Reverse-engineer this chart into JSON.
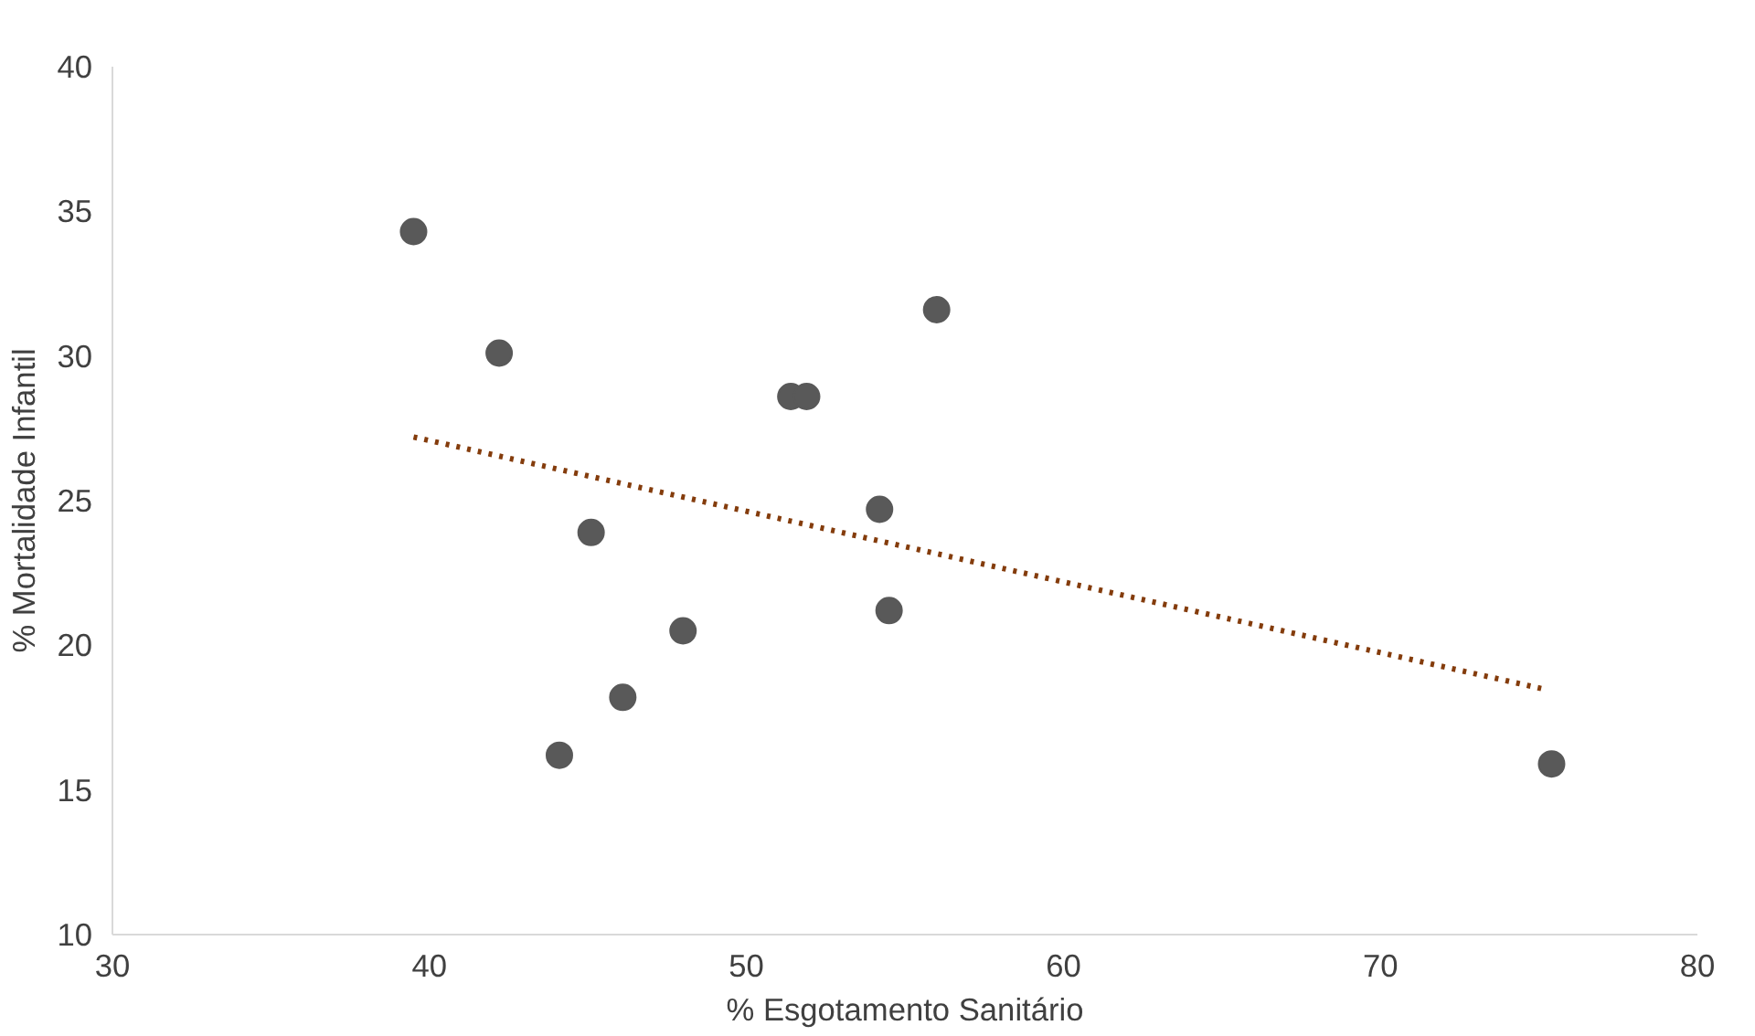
{
  "chart_data": {
    "type": "scatter",
    "xlabel": "% Esgotamento Sanitário",
    "ylabel": "% Mortalidade Infantil",
    "xlim": [
      30,
      80
    ],
    "ylim": [
      10,
      40
    ],
    "xticks": [
      30,
      40,
      50,
      60,
      70,
      80
    ],
    "yticks": [
      10,
      15,
      20,
      25,
      30,
      35,
      40
    ],
    "grid": false,
    "marker": "circle",
    "series": [
      {
        "color": "#595959",
        "x": [
          39.5,
          42.2,
          45.1,
          48.0,
          46.1,
          44.1,
          51.4,
          51.9,
          54.2,
          54.5,
          56.0,
          75.4
        ],
        "values": [
          34.3,
          30.1,
          23.9,
          20.5,
          18.2,
          16.2,
          28.6,
          28.6,
          24.7,
          21.2,
          31.6,
          15.9
        ]
      },
      {
        "type": "line",
        "color": "#843c0c",
        "line_style": "dotted",
        "marker": "none",
        "x": [
          39.5,
          75.1
        ],
        "values": [
          27.2,
          18.5
        ]
      }
    ]
  }
}
